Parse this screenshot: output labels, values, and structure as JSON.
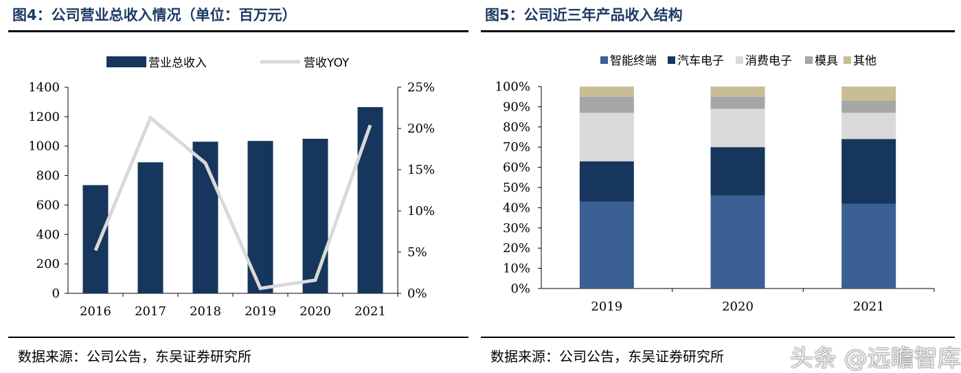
{
  "left_panel": {
    "title": "图4：公司营业总收入情况（单位：百万元）",
    "source": "数据来源：公司公告，东吴证券研究所"
  },
  "right_panel": {
    "title": "图5：公司近三年产品收入结构",
    "source": "数据来源：公司公告，东吴证券研究所"
  },
  "watermark": "头条 @远瞻智库",
  "colors": {
    "bar_navy": "#17365d",
    "line_gray": "#d9d9d9",
    "seg_smart": "#3a6095",
    "seg_auto": "#17365d",
    "seg_consumer": "#d9d9d9",
    "seg_mold": "#a6a6a6",
    "seg_other": "#c9bd93",
    "title_color": "#1b3a63"
  },
  "chart_data": [
    {
      "type": "bar",
      "categories": [
        "2016",
        "2017",
        "2018",
        "2019",
        "2020",
        "2021"
      ],
      "series": [
        {
          "name": "营业总收入",
          "type": "bar",
          "axis": "left",
          "values": [
            735,
            890,
            1030,
            1035,
            1050,
            1265
          ]
        },
        {
          "name": "营收YOY",
          "type": "line",
          "axis": "right",
          "values": [
            5.2,
            21.3,
            15.8,
            0.6,
            1.6,
            20.4
          ]
        }
      ],
      "ylim": [
        0,
        1400
      ],
      "yticks": [
        "0",
        "200",
        "400",
        "600",
        "800",
        "1000",
        "1200",
        "1400"
      ],
      "y2lim": [
        0,
        25
      ],
      "y2ticks": [
        "0%",
        "5%",
        "10%",
        "15%",
        "20%",
        "25%"
      ],
      "legend": "top"
    },
    {
      "type": "bar",
      "stacked": true,
      "categories": [
        "2019",
        "2020",
        "2021"
      ],
      "series": [
        {
          "name": "智能终端",
          "values": [
            43,
            46,
            42
          ]
        },
        {
          "name": "汽车电子",
          "values": [
            20,
            24,
            32
          ]
        },
        {
          "name": "消费电子",
          "values": [
            24,
            19,
            13
          ]
        },
        {
          "name": "模具",
          "values": [
            8,
            6,
            6
          ]
        },
        {
          "name": "其他",
          "values": [
            5,
            5,
            7
          ]
        }
      ],
      "ylim": [
        0,
        100
      ],
      "yticks": [
        "0%",
        "10%",
        "20%",
        "30%",
        "40%",
        "50%",
        "60%",
        "70%",
        "80%",
        "90%",
        "100%"
      ],
      "legend": "top"
    }
  ]
}
